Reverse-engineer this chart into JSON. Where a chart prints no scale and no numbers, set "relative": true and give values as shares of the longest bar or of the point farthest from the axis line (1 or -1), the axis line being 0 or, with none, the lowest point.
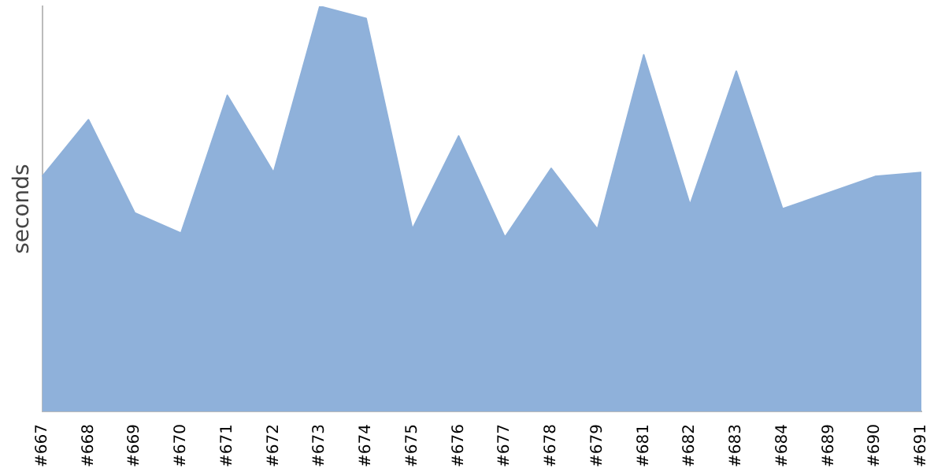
{
  "chart_data": {
    "type": "area",
    "ylabel": "seconds",
    "relative": true,
    "legend": false,
    "grid": false,
    "categories": [
      "#667",
      "#668",
      "#669",
      "#670",
      "#671",
      "#672",
      "#673",
      "#674",
      "#675",
      "#676",
      "#677",
      "#678",
      "#679",
      "#681",
      "#682",
      "#683",
      "#684",
      "#689",
      "#690",
      "#691"
    ],
    "series": [
      {
        "color": "#8fb1da",
        "values": [
          0.58,
          0.72,
          0.49,
          0.44,
          0.78,
          0.59,
          1,
          0.97,
          0.45,
          0.68,
          0.43,
          0.6,
          0.45,
          0.88,
          0.51,
          0.84,
          0.5,
          0.54,
          0.58,
          0.59
        ]
      }
    ]
  }
}
